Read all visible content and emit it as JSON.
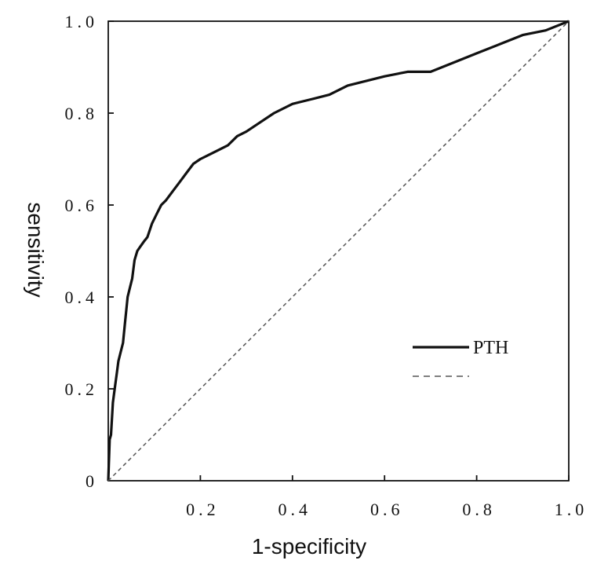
{
  "chart_data": {
    "type": "line",
    "title": "",
    "xlabel": "1-specificity",
    "ylabel": "sensitivity",
    "xlim": [
      0,
      1
    ],
    "ylim": [
      0,
      1
    ],
    "grid": false,
    "legend_position": "center-right",
    "x_ticks": [
      {
        "value": 0.2,
        "label": "0.2"
      },
      {
        "value": 0.4,
        "label": "0.4"
      },
      {
        "value": 0.6,
        "label": "0.6"
      },
      {
        "value": 0.8,
        "label": "0.8"
      },
      {
        "value": 1.0,
        "label": "1.0"
      }
    ],
    "y_ticks": [
      {
        "value": 0,
        "label": "0"
      },
      {
        "value": 0.2,
        "label": "0.2"
      },
      {
        "value": 0.4,
        "label": "0.4"
      },
      {
        "value": 0.6,
        "label": "0.6"
      },
      {
        "value": 0.8,
        "label": "0.8"
      },
      {
        "value": 1.0,
        "label": "1.0"
      }
    ],
    "series": [
      {
        "name": "PTH",
        "style": "solid",
        "color": "#111111",
        "x": [
          0,
          0.003,
          0.006,
          0.01,
          0.014,
          0.018,
          0.022,
          0.027,
          0.032,
          0.037,
          0.042,
          0.047,
          0.052,
          0.057,
          0.063,
          0.07,
          0.077,
          0.085,
          0.095,
          0.105,
          0.115,
          0.125,
          0.14,
          0.155,
          0.17,
          0.185,
          0.2,
          0.22,
          0.24,
          0.26,
          0.28,
          0.3,
          0.33,
          0.36,
          0.4,
          0.44,
          0.48,
          0.52,
          0.56,
          0.6,
          0.65,
          0.7,
          0.75,
          0.8,
          0.85,
          0.9,
          0.95,
          1.0
        ],
        "y": [
          0,
          0.09,
          0.1,
          0.17,
          0.2,
          0.23,
          0.26,
          0.28,
          0.3,
          0.35,
          0.4,
          0.42,
          0.44,
          0.48,
          0.5,
          0.51,
          0.52,
          0.53,
          0.56,
          0.58,
          0.6,
          0.61,
          0.63,
          0.65,
          0.67,
          0.69,
          0.7,
          0.71,
          0.72,
          0.73,
          0.75,
          0.76,
          0.78,
          0.8,
          0.82,
          0.83,
          0.84,
          0.86,
          0.87,
          0.88,
          0.89,
          0.89,
          0.91,
          0.93,
          0.95,
          0.97,
          0.98,
          1.0
        ]
      },
      {
        "name": "",
        "style": "dashed",
        "color": "#555555",
        "x": [
          0,
          1
        ],
        "y": [
          0,
          1
        ]
      }
    ]
  }
}
